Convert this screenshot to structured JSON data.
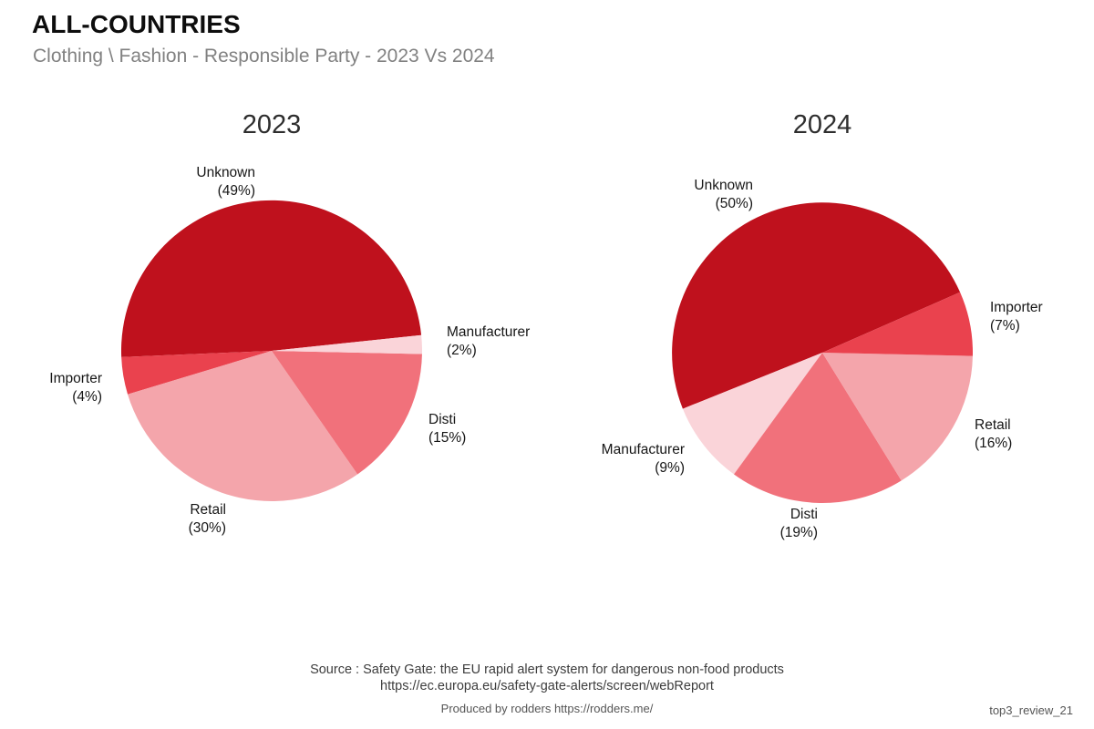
{
  "header": {
    "title": "ALL-COUNTRIES",
    "subtitle": "Clothing \\ Fashion - Responsible Party - 2023 Vs 2024"
  },
  "chart_data": [
    {
      "type": "pie",
      "title": "2023",
      "direction": "counterclockwise",
      "start_angle_deg": 6,
      "slices": [
        {
          "label": "Unknown",
          "value": 49,
          "pct_label": "(49%)",
          "color": "#bf111d"
        },
        {
          "label": "Importer",
          "value": 4,
          "pct_label": "(4%)",
          "color": "#ea424e"
        },
        {
          "label": "Retail",
          "value": 30,
          "pct_label": "(30%)",
          "color": "#f4a5ab"
        },
        {
          "label": "Disti",
          "value": 15,
          "pct_label": "(15%)",
          "color": "#f1717b"
        },
        {
          "label": "Manufacturer",
          "value": 2,
          "pct_label": "(2%)",
          "color": "#fad4d9"
        }
      ]
    },
    {
      "type": "pie",
      "title": "2024",
      "direction": "counterclockwise",
      "start_angle_deg": 23.7,
      "slices": [
        {
          "label": "Unknown",
          "value": 50,
          "pct_label": "(50%)",
          "color": "#bf111d"
        },
        {
          "label": "Manufacturer",
          "value": 9,
          "pct_label": "(9%)",
          "color": "#fad4d9"
        },
        {
          "label": "Disti",
          "value": 19,
          "pct_label": "(19%)",
          "color": "#f1717b"
        },
        {
          "label": "Retail",
          "value": 16,
          "pct_label": "(16%)",
          "color": "#f4a5ab"
        },
        {
          "label": "Importer",
          "value": 7,
          "pct_label": "(7%)",
          "color": "#ea424e"
        }
      ]
    }
  ],
  "footer": {
    "source_line1": "Source : Safety Gate: the EU rapid alert system for dangerous non-food products",
    "source_line2": "https://ec.europa.eu/safety-gate-alerts/screen/webReport",
    "produced_by": "Produced by rodders https://rodders.me/",
    "watermark": "top3_review_21"
  }
}
